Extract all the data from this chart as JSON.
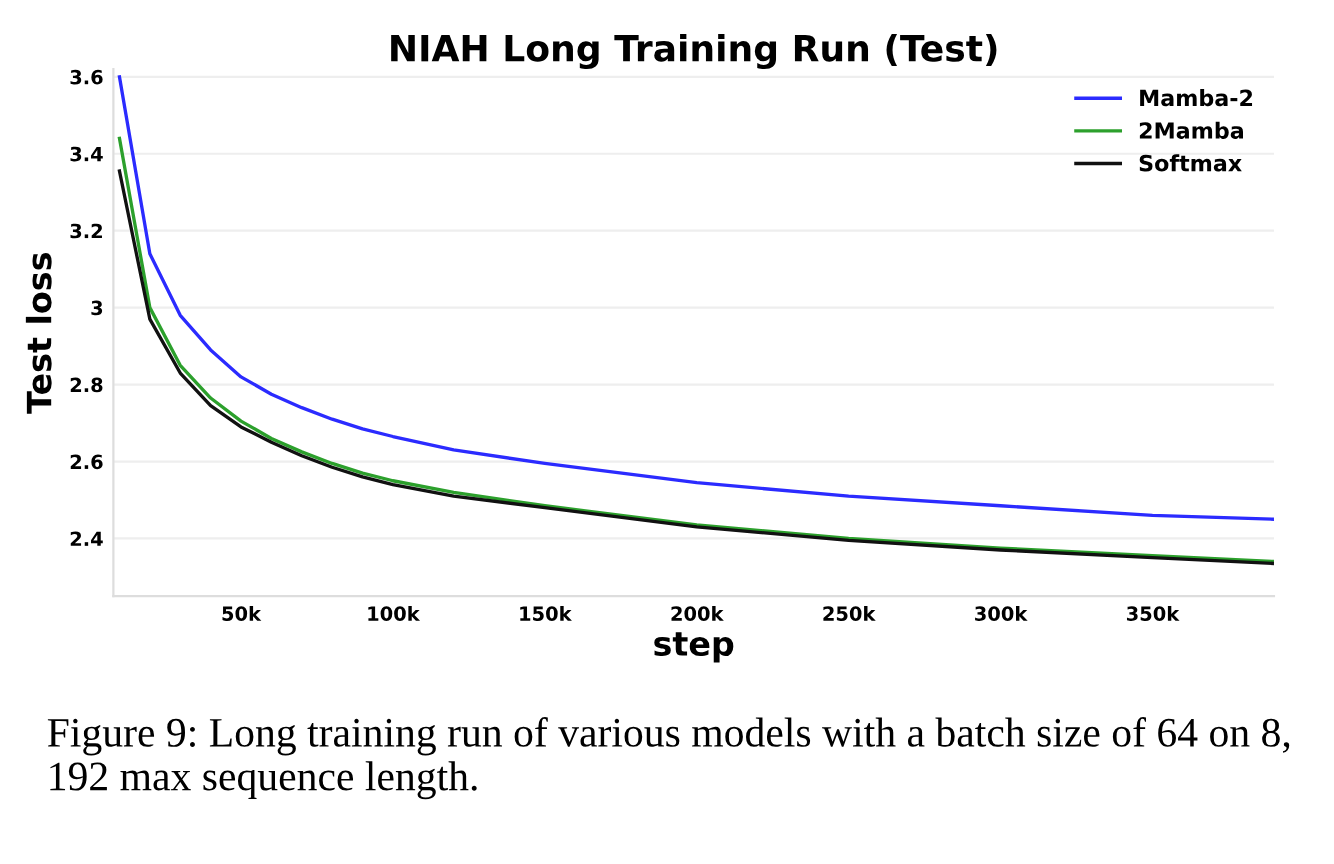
{
  "chart_data": {
    "type": "line",
    "title": "NIAH Long Training Run (Test)",
    "xlabel": "step",
    "ylabel": "Test loss",
    "x": [
      10000,
      20000,
      30000,
      40000,
      50000,
      60000,
      70000,
      80000,
      90000,
      100000,
      120000,
      150000,
      200000,
      250000,
      300000,
      350000,
      390000
    ],
    "series": [
      {
        "name": "Mamba-2",
        "color": "#2b2bff",
        "values": [
          3.6,
          3.14,
          2.98,
          2.89,
          2.82,
          2.775,
          2.74,
          2.71,
          2.685,
          2.665,
          2.63,
          2.595,
          2.545,
          2.51,
          2.485,
          2.46,
          2.45
        ]
      },
      {
        "name": "2Mamba",
        "color": "#2ca02c",
        "values": [
          3.44,
          3.0,
          2.85,
          2.765,
          2.705,
          2.66,
          2.625,
          2.595,
          2.57,
          2.55,
          2.52,
          2.485,
          2.435,
          2.4,
          2.375,
          2.355,
          2.34
        ]
      },
      {
        "name": "Softmax",
        "color": "#111111",
        "values": [
          3.355,
          2.97,
          2.83,
          2.745,
          2.69,
          2.65,
          2.615,
          2.585,
          2.56,
          2.54,
          2.51,
          2.48,
          2.43,
          2.395,
          2.37,
          2.35,
          2.335
        ]
      }
    ],
    "xlim": [
      8000,
      390000
    ],
    "ylim": [
      2.25,
      3.62
    ],
    "xticks": [
      {
        "value": 50000,
        "label": "50k"
      },
      {
        "value": 100000,
        "label": "100k"
      },
      {
        "value": 150000,
        "label": "150k"
      },
      {
        "value": 200000,
        "label": "200k"
      },
      {
        "value": 250000,
        "label": "250k"
      },
      {
        "value": 300000,
        "label": "300k"
      },
      {
        "value": 350000,
        "label": "350k"
      }
    ],
    "yticks": [
      2.4,
      2.6,
      2.8,
      {
        "value": 3.0,
        "label": "3"
      },
      3.2,
      3.4,
      3.6
    ],
    "grid": "y",
    "legend": "top right",
    "annotations": [
      "Figure 9: Long training run of various models with a batch size of 64 on 8, 192 max sequence length."
    ]
  }
}
